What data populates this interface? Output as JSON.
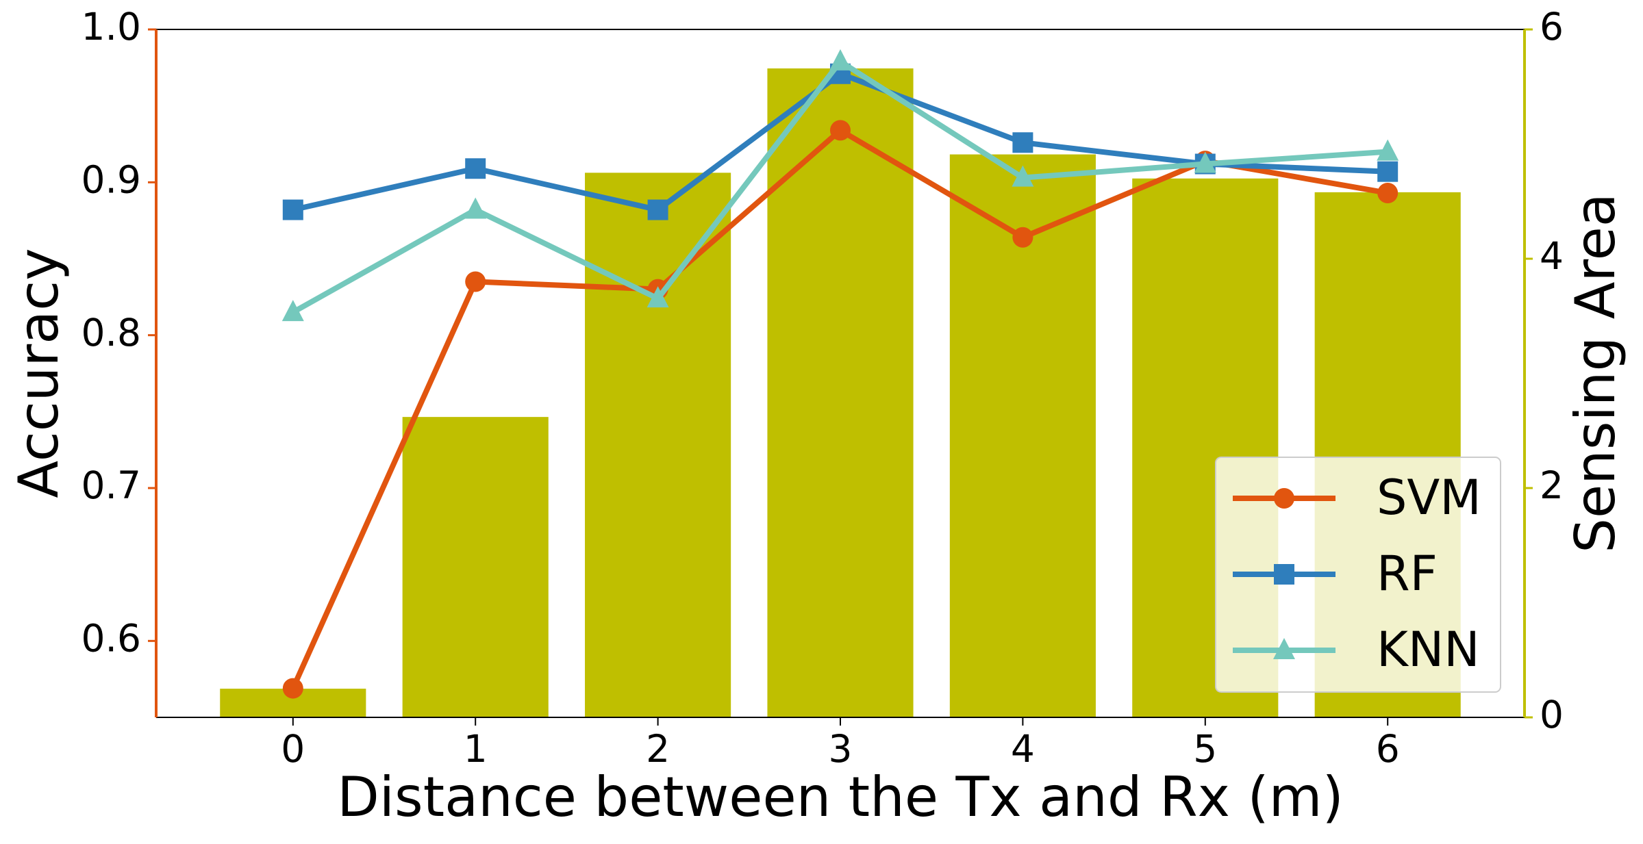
{
  "chart_data": {
    "type": "bar-line",
    "x_label": "Distance between the Tx and Rx (m)",
    "y_label": "Accuracy",
    "y2_label": "Sensing Area",
    "x": [
      0,
      1,
      2,
      3,
      4,
      5,
      6
    ],
    "xlim": [
      -0.75,
      6.75
    ],
    "xticks": [
      0,
      1,
      2,
      3,
      4,
      5,
      6
    ],
    "ylim": [
      0.55,
      1.0
    ],
    "yticks": [
      0.6,
      0.7,
      0.8,
      0.9,
      {
        "value": 1.0,
        "label": "1.0"
      }
    ],
    "y2lim": [
      0,
      6
    ],
    "y2ticks": [
      0,
      2,
      4,
      6
    ],
    "y_axis_color": "#e1550f",
    "y2_axis_color": "#bfbf00",
    "bars": {
      "axis": "y2",
      "color": "#bfbf00",
      "values": [
        0.25,
        2.62,
        4.75,
        5.66,
        4.91,
        4.7,
        4.58
      ]
    },
    "series": [
      {
        "name": "SVM",
        "color": "#e1550f",
        "marker": "circle",
        "values": [
          0.569,
          0.835,
          0.83,
          0.934,
          0.864,
          0.914,
          0.893
        ]
      },
      {
        "name": "RF",
        "color": "#2f7ebc",
        "marker": "square",
        "values": [
          0.882,
          0.909,
          0.882,
          0.971,
          0.926,
          0.912,
          0.907
        ]
      },
      {
        "name": "KNN",
        "color": "#74c8bc",
        "marker": "triangle",
        "values": [
          0.815,
          0.882,
          0.824,
          0.979,
          0.903,
          0.912,
          0.92
        ]
      }
    ],
    "legend": "lower right"
  }
}
